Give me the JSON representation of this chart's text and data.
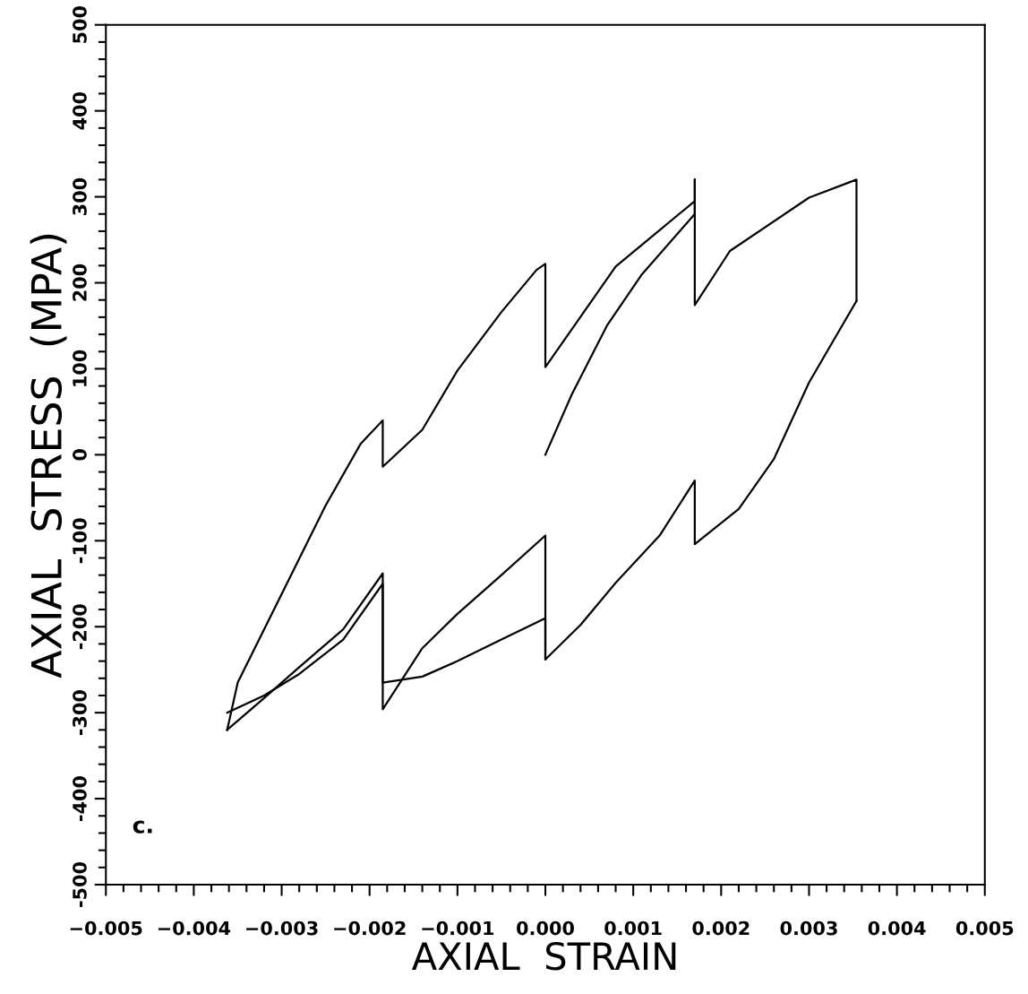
{
  "chart_data": {
    "type": "line",
    "xlabel": "AXIAL  STRAIN",
    "ylabel": "AXIAL  STRESS  (MPA)",
    "annotations": [
      "c."
    ],
    "grid": false,
    "marker": "none",
    "line_style": "solid",
    "xlim": [
      -0.005,
      0.005
    ],
    "ylim": [
      -500,
      500
    ],
    "xticks": [
      {
        "value": -0.005,
        "label": "−0.005"
      },
      {
        "value": -0.004,
        "label": "−0.004"
      },
      {
        "value": -0.003,
        "label": "−0.003"
      },
      {
        "value": -0.002,
        "label": "−0.002"
      },
      {
        "value": -0.001,
        "label": "−0.001"
      },
      {
        "value": 0.0,
        "label": "0.000"
      },
      {
        "value": 0.001,
        "label": "0.001"
      },
      {
        "value": 0.002,
        "label": "0.002"
      },
      {
        "value": 0.003,
        "label": "0.003"
      },
      {
        "value": 0.004,
        "label": "0.004"
      },
      {
        "value": 0.005,
        "label": "0.005"
      },
      {
        "value": -0.0048,
        "label": null
      },
      {
        "value": -0.0046,
        "label": null
      },
      {
        "value": -0.0044,
        "label": null
      },
      {
        "value": -0.0042,
        "label": null
      },
      {
        "value": -0.0038,
        "label": null
      },
      {
        "value": -0.0036,
        "label": null
      },
      {
        "value": -0.0034,
        "label": null
      },
      {
        "value": -0.0032,
        "label": null
      },
      {
        "value": -0.0028,
        "label": null
      },
      {
        "value": -0.0026,
        "label": null
      },
      {
        "value": -0.0024,
        "label": null
      },
      {
        "value": -0.0022,
        "label": null
      },
      {
        "value": -0.0018,
        "label": null
      },
      {
        "value": -0.0016,
        "label": null
      },
      {
        "value": -0.0014,
        "label": null
      },
      {
        "value": -0.0012,
        "label": null
      },
      {
        "value": -0.0008,
        "label": null
      },
      {
        "value": -0.0006,
        "label": null
      },
      {
        "value": -0.0004,
        "label": null
      },
      {
        "value": -0.0002,
        "label": null
      },
      {
        "value": 0.0002,
        "label": null
      },
      {
        "value": 0.0004,
        "label": null
      },
      {
        "value": 0.0006,
        "label": null
      },
      {
        "value": 0.0008,
        "label": null
      },
      {
        "value": 0.0012,
        "label": null
      },
      {
        "value": 0.0014,
        "label": null
      },
      {
        "value": 0.0016,
        "label": null
      },
      {
        "value": 0.0018,
        "label": null
      },
      {
        "value": 0.0022,
        "label": null
      },
      {
        "value": 0.0024,
        "label": null
      },
      {
        "value": 0.0026,
        "label": null
      },
      {
        "value": 0.0028,
        "label": null
      },
      {
        "value": 0.0032,
        "label": null
      },
      {
        "value": 0.0034,
        "label": null
      },
      {
        "value": 0.0036,
        "label": null
      },
      {
        "value": 0.0038,
        "label": null
      },
      {
        "value": 0.0042,
        "label": null
      },
      {
        "value": 0.0044,
        "label": null
      },
      {
        "value": 0.0046,
        "label": null
      },
      {
        "value": 0.0048,
        "label": null
      }
    ],
    "yticks": [
      -500,
      -400,
      -300,
      -200,
      -100,
      0,
      100,
      200,
      300,
      400,
      500,
      {
        "value": -480,
        "label": null
      },
      {
        "value": -460,
        "label": null
      },
      {
        "value": -440,
        "label": null
      },
      {
        "value": -420,
        "label": null
      },
      {
        "value": -380,
        "label": null
      },
      {
        "value": -360,
        "label": null
      },
      {
        "value": -340,
        "label": null
      },
      {
        "value": -320,
        "label": null
      },
      {
        "value": -280,
        "label": null
      },
      {
        "value": -260,
        "label": null
      },
      {
        "value": -240,
        "label": null
      },
      {
        "value": -220,
        "label": null
      },
      {
        "value": -180,
        "label": null
      },
      {
        "value": -160,
        "label": null
      },
      {
        "value": -140,
        "label": null
      },
      {
        "value": -120,
        "label": null
      },
      {
        "value": -80,
        "label": null
      },
      {
        "value": -60,
        "label": null
      },
      {
        "value": -40,
        "label": null
      },
      {
        "value": -20,
        "label": null
      },
      {
        "value": 20,
        "label": null
      },
      {
        "value": 40,
        "label": null
      },
      {
        "value": 60,
        "label": null
      },
      {
        "value": 80,
        "label": null
      },
      {
        "value": 120,
        "label": null
      },
      {
        "value": 140,
        "label": null
      },
      {
        "value": 160,
        "label": null
      },
      {
        "value": 180,
        "label": null
      },
      {
        "value": 220,
        "label": null
      },
      {
        "value": 240,
        "label": null
      },
      {
        "value": 260,
        "label": null
      },
      {
        "value": 280,
        "label": null
      },
      {
        "value": 320,
        "label": null
      },
      {
        "value": 340,
        "label": null
      },
      {
        "value": 360,
        "label": null
      },
      {
        "value": 380,
        "label": null
      },
      {
        "value": 420,
        "label": null
      },
      {
        "value": 440,
        "label": null
      },
      {
        "value": 460,
        "label": null
      },
      {
        "value": 480,
        "label": null
      }
    ],
    "series": [
      {
        "color": "#000000",
        "x": [
          0.0,
          0.0003,
          0.0007,
          0.0011,
          0.0017,
          0.0017
        ],
        "values": [
          0,
          70,
          150,
          210,
          280,
          320
        ]
      },
      {
        "color": "#000000",
        "x": [
          -0.00362,
          -0.0035,
          -0.003,
          -0.0025,
          -0.0021,
          -0.00185,
          -0.00185,
          -0.0014,
          -0.001,
          -0.0005,
          -0.0001,
          0.0,
          0.0,
          0.0008,
          0.0017,
          0.0017,
          0.0017,
          0.0021,
          0.003,
          0.00354,
          0.00354
        ],
        "values": [
          -320,
          -265,
          -162,
          -59,
          13,
          40,
          -14,
          29,
          98,
          166,
          215,
          222,
          102,
          219,
          295,
          320,
          174,
          237,
          299,
          320,
          179
        ]
      },
      {
        "color": "#000000",
        "x": [
          -0.00362,
          -0.0032,
          -0.0028,
          -0.0023,
          -0.00185,
          -0.00185,
          -0.0014,
          -0.001,
          -0.0005,
          0.0,
          0.0,
          0.0004,
          0.0008,
          0.0013,
          0.0017,
          0.0017,
          0.0022,
          0.0026,
          0.003,
          0.00354
        ],
        "values": [
          -320,
          -283,
          -247,
          -203,
          -138,
          -296,
          -225,
          -185,
          -140,
          -94,
          -238,
          -198,
          -149,
          -94,
          -30,
          -104,
          -63,
          -5,
          84,
          179
        ]
      },
      {
        "color": "#000000",
        "x": [
          -0.00362,
          -0.0032,
          -0.0028,
          -0.0023,
          -0.00185,
          -0.00185,
          -0.0014,
          -0.001,
          -0.0005,
          0.0,
          0.0
        ],
        "values": [
          -300,
          -280,
          -255,
          -215,
          -150,
          -265,
          -258,
          -240,
          -215,
          -190,
          -238
        ]
      }
    ]
  }
}
